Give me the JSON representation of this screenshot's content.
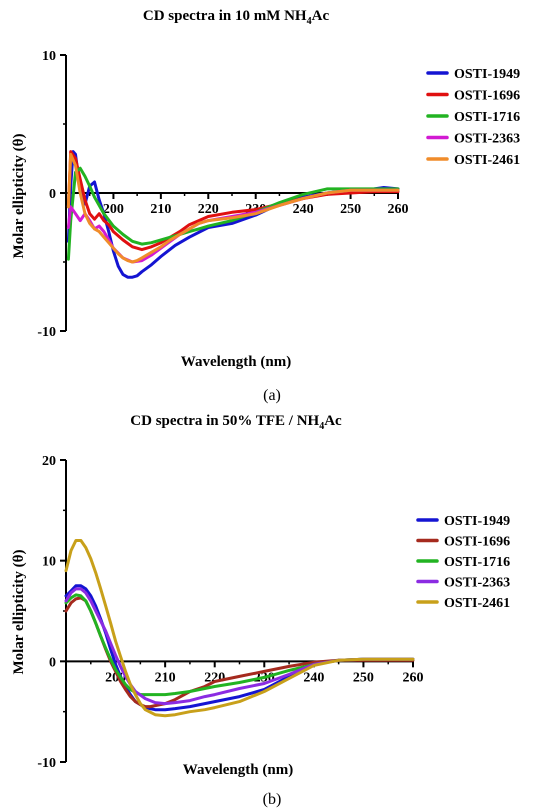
{
  "chart_data": [
    {
      "type": "line",
      "title_main": "CD spectra in 10 mM NH",
      "title_sub": "4",
      "title_end": "Ac",
      "xlabel": "Wavelength (nm)",
      "ylabel": "Molar ellipticity (θ)",
      "panel_label": "(a)",
      "xlim": [
        190,
        260
      ],
      "ylim": [
        -10,
        10
      ],
      "xticks": [
        200,
        210,
        220,
        230,
        240,
        250,
        260
      ],
      "xtick_labels": [
        "200",
        "210",
        "220",
        "230",
        "240",
        "250",
        "260"
      ],
      "yticks": [
        10,
        0,
        -10
      ],
      "ytick_labels": [
        "10",
        "0",
        "-10"
      ],
      "legend_position": "right",
      "series": [
        {
          "name": "OSTI-1949",
          "color": "#1414d2",
          "x": [
            190.5,
            191,
            191.5,
            192,
            192.5,
            193,
            194,
            195,
            196,
            197,
            198,
            199,
            200,
            201,
            202,
            203,
            204,
            205,
            206,
            208,
            210,
            213,
            216,
            220,
            225,
            230,
            235,
            240,
            245,
            250,
            255,
            257,
            260
          ],
          "y": [
            -3.5,
            0.5,
            3.0,
            2.8,
            1.5,
            0.3,
            -0.8,
            0.5,
            0.8,
            -0.5,
            -1.5,
            -2.8,
            -4.2,
            -5.3,
            -5.9,
            -6.1,
            -6.1,
            -6.0,
            -5.7,
            -5.2,
            -4.6,
            -3.8,
            -3.2,
            -2.5,
            -2.2,
            -1.6,
            -0.8,
            -0.3,
            0.0,
            0.2,
            0.3,
            0.4,
            0.3
          ]
        },
        {
          "name": "OSTI-1696",
          "color": "#e01010",
          "x": [
            190.5,
            191,
            192,
            193,
            194,
            195,
            196,
            197,
            198,
            199,
            200,
            202,
            204,
            206,
            208,
            210,
            212,
            214,
            216,
            218,
            220,
            225,
            230,
            235,
            240,
            245,
            250,
            255,
            260
          ],
          "y": [
            -1.0,
            3.0,
            2.5,
            1.0,
            -0.5,
            -1.5,
            -1.9,
            -1.5,
            -2.0,
            -2.3,
            -2.8,
            -3.4,
            -3.9,
            -4.1,
            -3.9,
            -3.6,
            -3.2,
            -2.8,
            -2.3,
            -2.0,
            -1.7,
            -1.4,
            -1.2,
            -0.8,
            -0.4,
            -0.1,
            0.0,
            0.1,
            0.1
          ]
        },
        {
          "name": "OSTI-1716",
          "color": "#22b322",
          "x": [
            190.5,
            191,
            192,
            193,
            194,
            195,
            196,
            198,
            200,
            202,
            204,
            206,
            208,
            210,
            212,
            214,
            216,
            218,
            220,
            225,
            230,
            235,
            240,
            245,
            250,
            255,
            260
          ],
          "y": [
            -4.8,
            -2.0,
            1.5,
            1.8,
            1.2,
            0.5,
            -0.3,
            -1.5,
            -2.4,
            -3.0,
            -3.5,
            -3.7,
            -3.6,
            -3.4,
            -3.2,
            -3.0,
            -2.8,
            -2.6,
            -2.4,
            -2.0,
            -1.4,
            -0.7,
            -0.1,
            0.3,
            0.3,
            0.3,
            0.3
          ]
        },
        {
          "name": "OSTI-2363",
          "color": "#d21ad2",
          "x": [
            190.5,
            191,
            192,
            193,
            194,
            195,
            196,
            197,
            198,
            199,
            200,
            202,
            204,
            206,
            208,
            210,
            212,
            214,
            216,
            218,
            220,
            225,
            230,
            235,
            240,
            245,
            250,
            255,
            260
          ],
          "y": [
            -2.5,
            -1.0,
            -1.5,
            -2.0,
            -1.5,
            -2.0,
            -2.6,
            -2.4,
            -2.8,
            -3.4,
            -4.0,
            -4.7,
            -5.0,
            -4.9,
            -4.5,
            -4.0,
            -3.5,
            -3.0,
            -2.6,
            -2.2,
            -2.0,
            -1.7,
            -1.4,
            -0.9,
            -0.4,
            0.0,
            0.2,
            0.2,
            0.2
          ]
        },
        {
          "name": "OSTI-2461",
          "color": "#f08c2a",
          "x": [
            190.5,
            191,
            192,
            193,
            194,
            195,
            196,
            197,
            198,
            199,
            200,
            201,
            202,
            203,
            204,
            205,
            206,
            208,
            210,
            212,
            214,
            216,
            218,
            220,
            225,
            230,
            235,
            240,
            245,
            250,
            255,
            260
          ],
          "y": [
            -1.0,
            2.8,
            2.0,
            0.0,
            -1.5,
            -2.2,
            -2.6,
            -2.8,
            -3.2,
            -3.6,
            -4.0,
            -4.4,
            -4.7,
            -4.9,
            -5.0,
            -4.9,
            -4.7,
            -4.3,
            -3.9,
            -3.4,
            -3.0,
            -2.6,
            -2.2,
            -2.0,
            -1.8,
            -1.5,
            -0.9,
            -0.4,
            0.0,
            0.2,
            0.2,
            0.2
          ]
        }
      ]
    },
    {
      "type": "line",
      "title_main": "CD spectra in 50% TFE / NH",
      "title_sub": "4",
      "title_end": "Ac",
      "xlabel": "Wavelength (nm)",
      "ylabel": "Molar ellipticity (θ)",
      "panel_label": "(b)",
      "xlim": [
        190,
        260
      ],
      "ylim": [
        -10,
        20
      ],
      "xticks": [
        200,
        210,
        220,
        230,
        240,
        250,
        260
      ],
      "xtick_labels": [
        "200",
        "210",
        "220",
        "230",
        "240",
        "250",
        "260"
      ],
      "yticks": [
        20,
        10,
        0,
        -10
      ],
      "ytick_labels": [
        "20",
        "10",
        "0",
        "-10"
      ],
      "legend_position": "right",
      "series": [
        {
          "name": "OSTI-1949",
          "color": "#1414d2",
          "x": [
            190,
            191,
            192,
            193,
            194,
            195,
            196,
            197,
            198,
            199,
            200,
            201,
            202,
            203,
            204,
            206,
            208,
            210,
            212,
            215,
            218,
            220,
            225,
            230,
            235,
            240,
            245,
            250,
            255,
            260
          ],
          "y": [
            6.5,
            7.0,
            7.5,
            7.5,
            7.2,
            6.5,
            5.5,
            4.2,
            2.8,
            1.2,
            -0.3,
            -1.5,
            -2.5,
            -3.3,
            -4.0,
            -4.6,
            -4.8,
            -4.8,
            -4.7,
            -4.5,
            -4.2,
            -4.0,
            -3.5,
            -2.8,
            -1.5,
            -0.3,
            0.1,
            0.2,
            0.2,
            0.2
          ]
        },
        {
          "name": "OSTI-1696",
          "color": "#a52a1e",
          "x": [
            190,
            191,
            192,
            193,
            194,
            195,
            196,
            197,
            198,
            199,
            200,
            201,
            202,
            203,
            204,
            205,
            206,
            207,
            208,
            210,
            212,
            215,
            218,
            220,
            225,
            230,
            235,
            240,
            245,
            250,
            255,
            260
          ],
          "y": [
            5.0,
            5.8,
            6.2,
            6.3,
            6.0,
            5.0,
            3.8,
            2.5,
            1.2,
            0.0,
            -1.0,
            -2.0,
            -2.8,
            -3.5,
            -4.0,
            -4.3,
            -4.5,
            -4.5,
            -4.4,
            -4.2,
            -3.8,
            -3.0,
            -2.5,
            -2.0,
            -1.5,
            -1.0,
            -0.5,
            -0.1,
            0.1,
            0.1,
            0.1,
            0.1
          ]
        },
        {
          "name": "OSTI-1716",
          "color": "#22b322",
          "x": [
            190,
            191,
            192,
            193,
            194,
            195,
            196,
            197,
            198,
            199,
            200,
            201,
            202,
            203,
            204,
            205,
            206,
            208,
            210,
            212,
            215,
            218,
            220,
            225,
            230,
            235,
            240,
            245,
            250,
            255,
            260
          ],
          "y": [
            5.8,
            6.3,
            6.6,
            6.5,
            6.0,
            5.0,
            3.8,
            2.5,
            1.3,
            0.2,
            -0.8,
            -1.6,
            -2.3,
            -2.8,
            -3.1,
            -3.3,
            -3.3,
            -3.3,
            -3.3,
            -3.2,
            -3.0,
            -2.7,
            -2.5,
            -2.1,
            -1.6,
            -0.9,
            -0.3,
            0.1,
            0.2,
            0.2,
            0.2
          ]
        },
        {
          "name": "OSTI-2363",
          "color": "#8b2be2",
          "x": [
            190,
            191,
            192,
            193,
            194,
            195,
            196,
            197,
            198,
            199,
            200,
            201,
            202,
            203,
            204,
            206,
            208,
            210,
            212,
            215,
            218,
            220,
            225,
            230,
            235,
            240,
            245,
            250,
            255,
            260
          ],
          "y": [
            6.0,
            6.8,
            7.2,
            7.2,
            6.8,
            6.0,
            5.0,
            4.0,
            3.0,
            1.8,
            0.6,
            -0.5,
            -1.5,
            -2.3,
            -3.0,
            -3.7,
            -4.1,
            -4.2,
            -4.1,
            -3.9,
            -3.5,
            -3.3,
            -2.7,
            -2.2,
            -1.3,
            -0.3,
            0.1,
            0.2,
            0.2,
            0.2
          ]
        },
        {
          "name": "OSTI-2461",
          "color": "#c8a01a",
          "x": [
            190,
            191,
            192,
            193,
            194,
            195,
            196,
            197,
            198,
            199,
            200,
            201,
            202,
            203,
            204,
            205,
            206,
            208,
            210,
            212,
            215,
            218,
            220,
            225,
            230,
            235,
            240,
            245,
            250,
            255,
            260
          ],
          "y": [
            9.0,
            11.0,
            12.0,
            12.0,
            11.3,
            10.2,
            8.8,
            7.2,
            5.5,
            3.8,
            2.0,
            0.5,
            -1.0,
            -2.3,
            -3.3,
            -4.2,
            -4.8,
            -5.3,
            -5.4,
            -5.3,
            -5.0,
            -4.8,
            -4.6,
            -4.0,
            -3.0,
            -1.7,
            -0.4,
            0.1,
            0.2,
            0.2,
            0.2
          ]
        }
      ]
    }
  ]
}
